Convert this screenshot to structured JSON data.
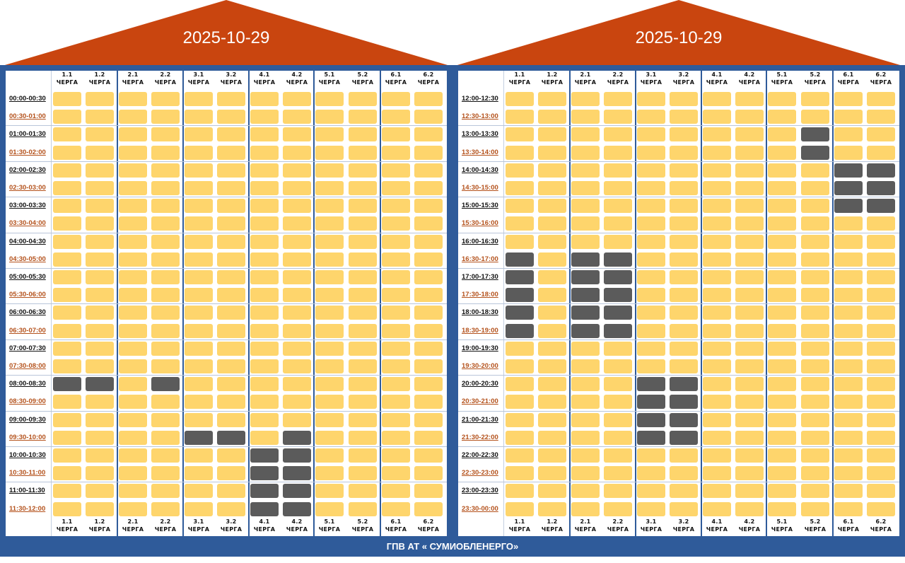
{
  "colors": {
    "roof": "#c9450f",
    "frame": "#2f5b9a",
    "power_on": "#fed56c",
    "power_off": "#5b5b5b",
    "time_dark": "#111111",
    "time_red": "#b4521c"
  },
  "group_prefix": "ЧЕРГА",
  "footer": {
    "text": "ГПВ АТ « СУМИОБЛЕНЕРГО»"
  },
  "panels": [
    {
      "date": "2025-10-29",
      "groups": [
        "1.1",
        "1.2",
        "2.1",
        "2.2",
        "3.1",
        "3.2",
        "4.1",
        "4.2",
        "5.1",
        "5.2",
        "6.1",
        "6.2"
      ],
      "times": [
        "00:00-00:30",
        "00:30-01:00",
        "01:00-01:30",
        "01:30-02:00",
        "02:00-02:30",
        "02:30-03:00",
        "03:00-03:30",
        "03:30-04:00",
        "04:00-04:30",
        "04:30-05:00",
        "05:00-05:30",
        "05:30-06:00",
        "06:00-06:30",
        "06:30-07:00",
        "07:00-07:30",
        "07:30-08:00",
        "08:00-08:30",
        "08:30-09:00",
        "09:00-09:30",
        "09:30-10:00",
        "10:00-10:30",
        "10:30-11:00",
        "11:00-11:30",
        "11:30-12:00"
      ],
      "outages": [
        {
          "slot": 16,
          "groups": [
            0,
            1,
            3
          ]
        },
        {
          "slot": 19,
          "groups": [
            4,
            5,
            7
          ]
        },
        {
          "slot": 20,
          "groups": [
            6,
            7
          ]
        },
        {
          "slot": 21,
          "groups": [
            6,
            7
          ]
        },
        {
          "slot": 22,
          "groups": [
            6,
            7
          ]
        },
        {
          "slot": 23,
          "groups": [
            6,
            7
          ]
        }
      ]
    },
    {
      "date": "2025-10-29",
      "groups": [
        "1.1",
        "1.2",
        "2.1",
        "2.2",
        "3.1",
        "3.2",
        "4.1",
        "4.2",
        "5.1",
        "5.2",
        "6.1",
        "6.2"
      ],
      "times": [
        "12:00-12:30",
        "12:30-13:00",
        "13:00-13:30",
        "13:30-14:00",
        "14:00-14:30",
        "14:30-15:00",
        "15:00-15:30",
        "15:30-16:00",
        "16:00-16:30",
        "16:30-17:00",
        "17:00-17:30",
        "17:30-18:00",
        "18:00-18:30",
        "18:30-19:00",
        "19:00-19:30",
        "19:30-20:00",
        "20:00-20:30",
        "20:30-21:00",
        "21:00-21:30",
        "21:30-22:00",
        "22:00-22:30",
        "22:30-23:00",
        "23:00-23:30",
        "23:30-00:00"
      ],
      "outages": [
        {
          "slot": 2,
          "groups": [
            9
          ]
        },
        {
          "slot": 3,
          "groups": [
            9
          ]
        },
        {
          "slot": 4,
          "groups": [
            10,
            11
          ]
        },
        {
          "slot": 5,
          "groups": [
            10,
            11
          ]
        },
        {
          "slot": 6,
          "groups": [
            10,
            11
          ]
        },
        {
          "slot": 9,
          "groups": [
            0,
            2,
            3
          ]
        },
        {
          "slot": 10,
          "groups": [
            0,
            2,
            3
          ]
        },
        {
          "slot": 11,
          "groups": [
            0,
            2,
            3
          ]
        },
        {
          "slot": 12,
          "groups": [
            0,
            2,
            3
          ]
        },
        {
          "slot": 13,
          "groups": [
            0,
            2,
            3
          ]
        },
        {
          "slot": 16,
          "groups": [
            4,
            5
          ]
        },
        {
          "slot": 17,
          "groups": [
            4,
            5
          ]
        },
        {
          "slot": 18,
          "groups": [
            4,
            5
          ]
        },
        {
          "slot": 19,
          "groups": [
            4,
            5
          ]
        }
      ]
    }
  ]
}
